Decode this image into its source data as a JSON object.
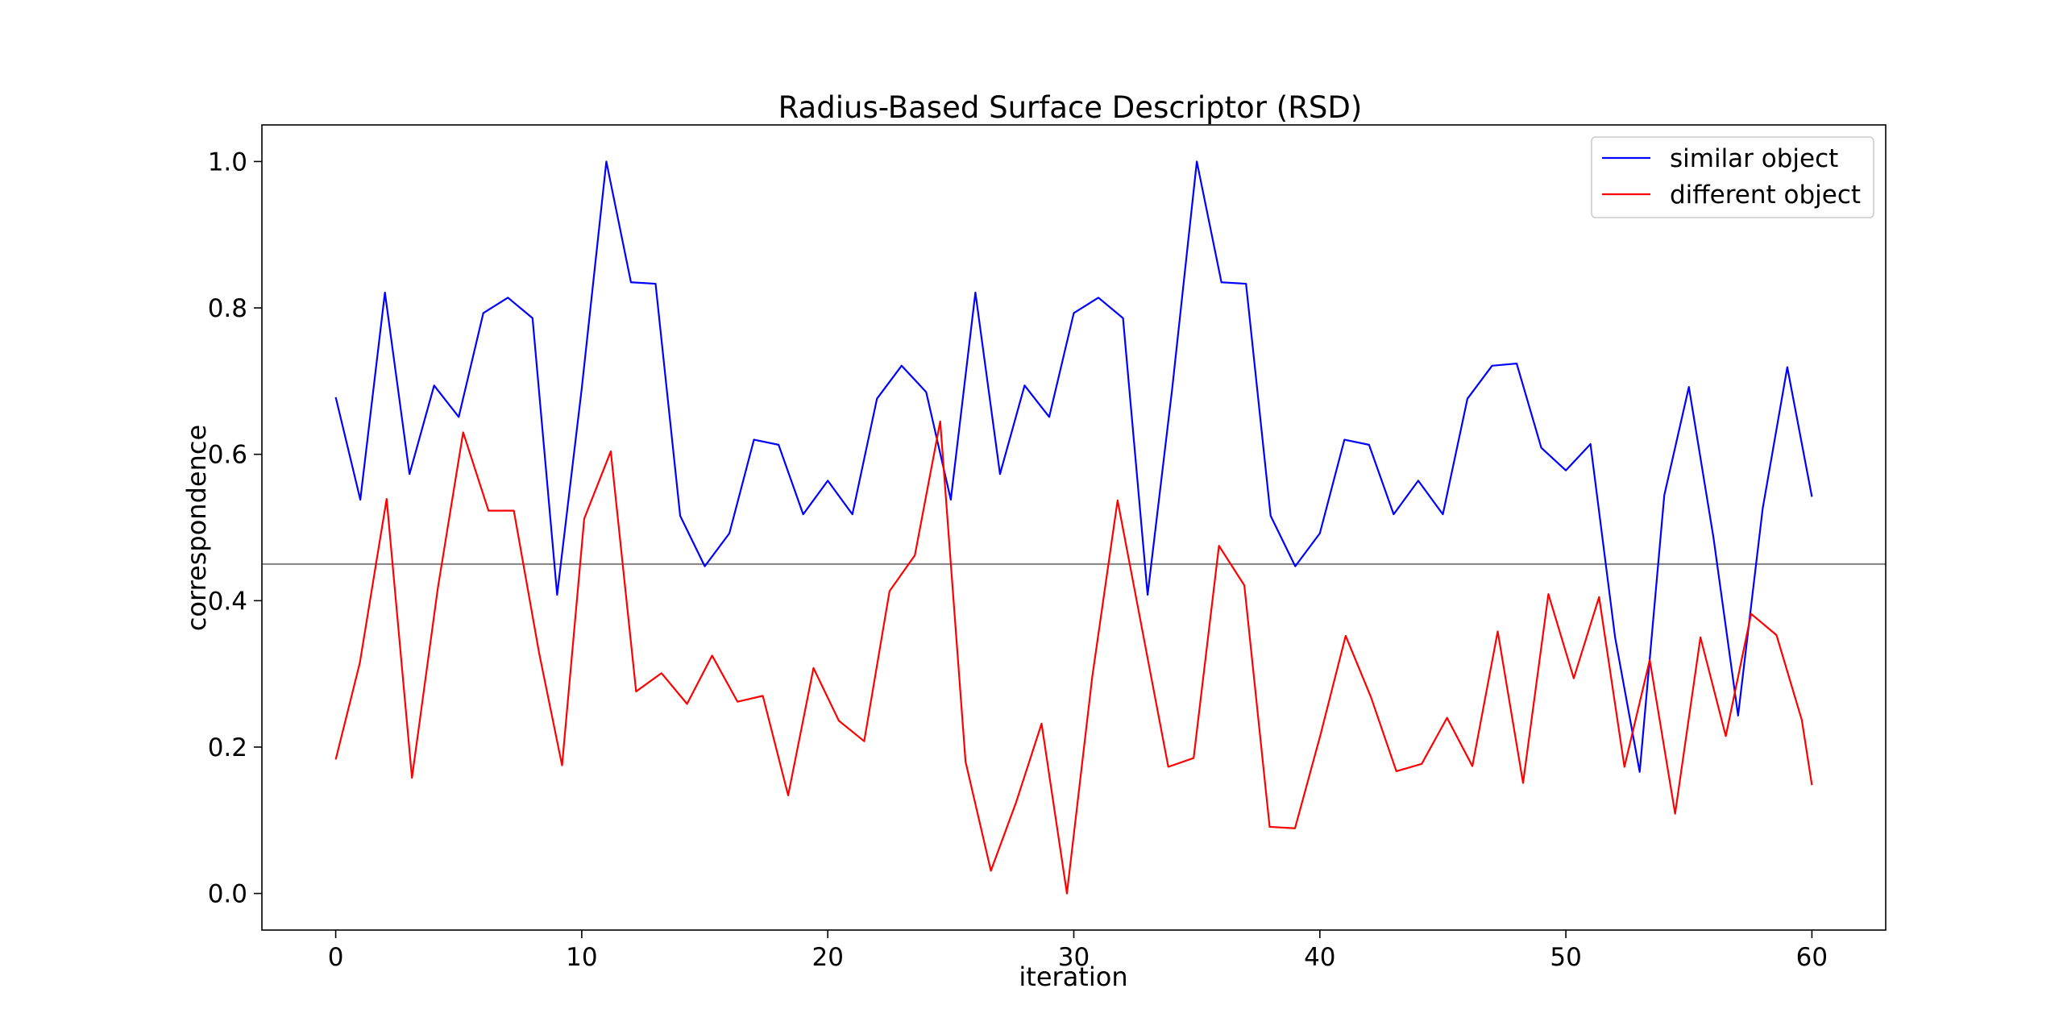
{
  "chart_data": {
    "type": "line",
    "title": "Radius-Based Surface Descriptor (RSD)",
    "xlabel": "iteration",
    "ylabel": "correspondence",
    "xlim": [
      -3,
      63
    ],
    "ylim": [
      -0.05,
      1.05
    ],
    "xticks": [
      0,
      10,
      20,
      30,
      40,
      50,
      60
    ],
    "xtick_labels": [
      "0",
      "10",
      "20",
      "30",
      "40",
      "50",
      "60"
    ],
    "yticks": [
      0.0,
      0.2,
      0.4,
      0.6,
      0.8,
      1.0
    ],
    "ytick_labels": [
      "0.0",
      "0.2",
      "0.4",
      "0.6",
      "0.8",
      "1.0"
    ],
    "grid": false,
    "legend_position": "upper right",
    "threshold": 0.45,
    "series": [
      {
        "name": "similar object",
        "color": "#0000ff",
        "x": [
          0,
          1,
          2,
          3,
          4,
          5,
          6,
          7,
          8,
          9,
          10,
          11,
          12,
          13,
          14,
          15,
          16,
          17,
          18,
          19,
          20,
          21,
          22,
          23,
          24,
          25,
          26,
          27,
          28,
          29,
          30,
          31,
          32,
          33,
          34,
          35,
          36,
          37,
          38,
          39,
          40,
          41,
          42,
          43,
          44,
          45,
          46,
          47,
          48,
          49,
          50,
          51,
          52,
          53,
          54,
          55,
          56,
          57,
          58,
          59,
          60
        ],
        "values": [
          0.678,
          0.538,
          0.821,
          0.573,
          0.694,
          0.651,
          0.793,
          0.814,
          0.786,
          0.408,
          0.69,
          1.0,
          0.835,
          0.833,
          0.516,
          0.447,
          0.492,
          0.62,
          0.613,
          0.518,
          0.564,
          0.518,
          0.676,
          0.721,
          0.685,
          0.538,
          0.821,
          0.573,
          0.694,
          0.651,
          0.793,
          0.814,
          0.786,
          0.408,
          0.69,
          1.0,
          0.835,
          0.833,
          0.516,
          0.447,
          0.492,
          0.62,
          0.613,
          0.518,
          0.564,
          0.518,
          0.676,
          0.721,
          0.724,
          0.609,
          0.578,
          0.614,
          0.35,
          0.166,
          0.544,
          0.692,
          0.486,
          0.243,
          0.526,
          0.719,
          0.542
        ]
      },
      {
        "name": "different object",
        "color": "#ff0000",
        "x": [
          0,
          0.98,
          2.07,
          3.1,
          4.15,
          5.18,
          6.21,
          7.24,
          8.27,
          9.2,
          10.1,
          11.18,
          12.21,
          13.24,
          14.28,
          15.3,
          16.33,
          17.36,
          18.39,
          19.42,
          20.45,
          21.48,
          22.51,
          23.54,
          24.57,
          25.6,
          26.63,
          27.66,
          28.69,
          29.72,
          30.75,
          31.78,
          32.81,
          33.84,
          34.87,
          35.9,
          36.93,
          37.96,
          38.99,
          40.02,
          41.05,
          42.08,
          43.11,
          44.14,
          45.17,
          46.2,
          47.23,
          48.26,
          49.29,
          50.32,
          51.35,
          52.38,
          53.41,
          54.44,
          55.47,
          56.5,
          57.53,
          58.56,
          59.59,
          60.0
        ],
        "values": [
          0.183,
          0.315,
          0.539,
          0.158,
          0.417,
          0.63,
          0.523,
          0.523,
          0.328,
          0.175,
          0.512,
          0.604,
          0.276,
          0.301,
          0.259,
          0.325,
          0.262,
          0.27,
          0.134,
          0.308,
          0.236,
          0.208,
          0.413,
          0.462,
          0.645,
          0.18,
          0.031,
          0.125,
          0.232,
          0.0,
          0.296,
          0.537,
          0.355,
          0.173,
          0.185,
          0.475,
          0.421,
          0.091,
          0.089,
          0.216,
          0.352,
          0.268,
          0.167,
          0.177,
          0.24,
          0.174,
          0.358,
          0.151,
          0.409,
          0.294,
          0.405,
          0.173,
          0.319,
          0.109,
          0.35,
          0.215,
          0.382,
          0.353,
          0.237,
          0.148
        ]
      }
    ]
  }
}
